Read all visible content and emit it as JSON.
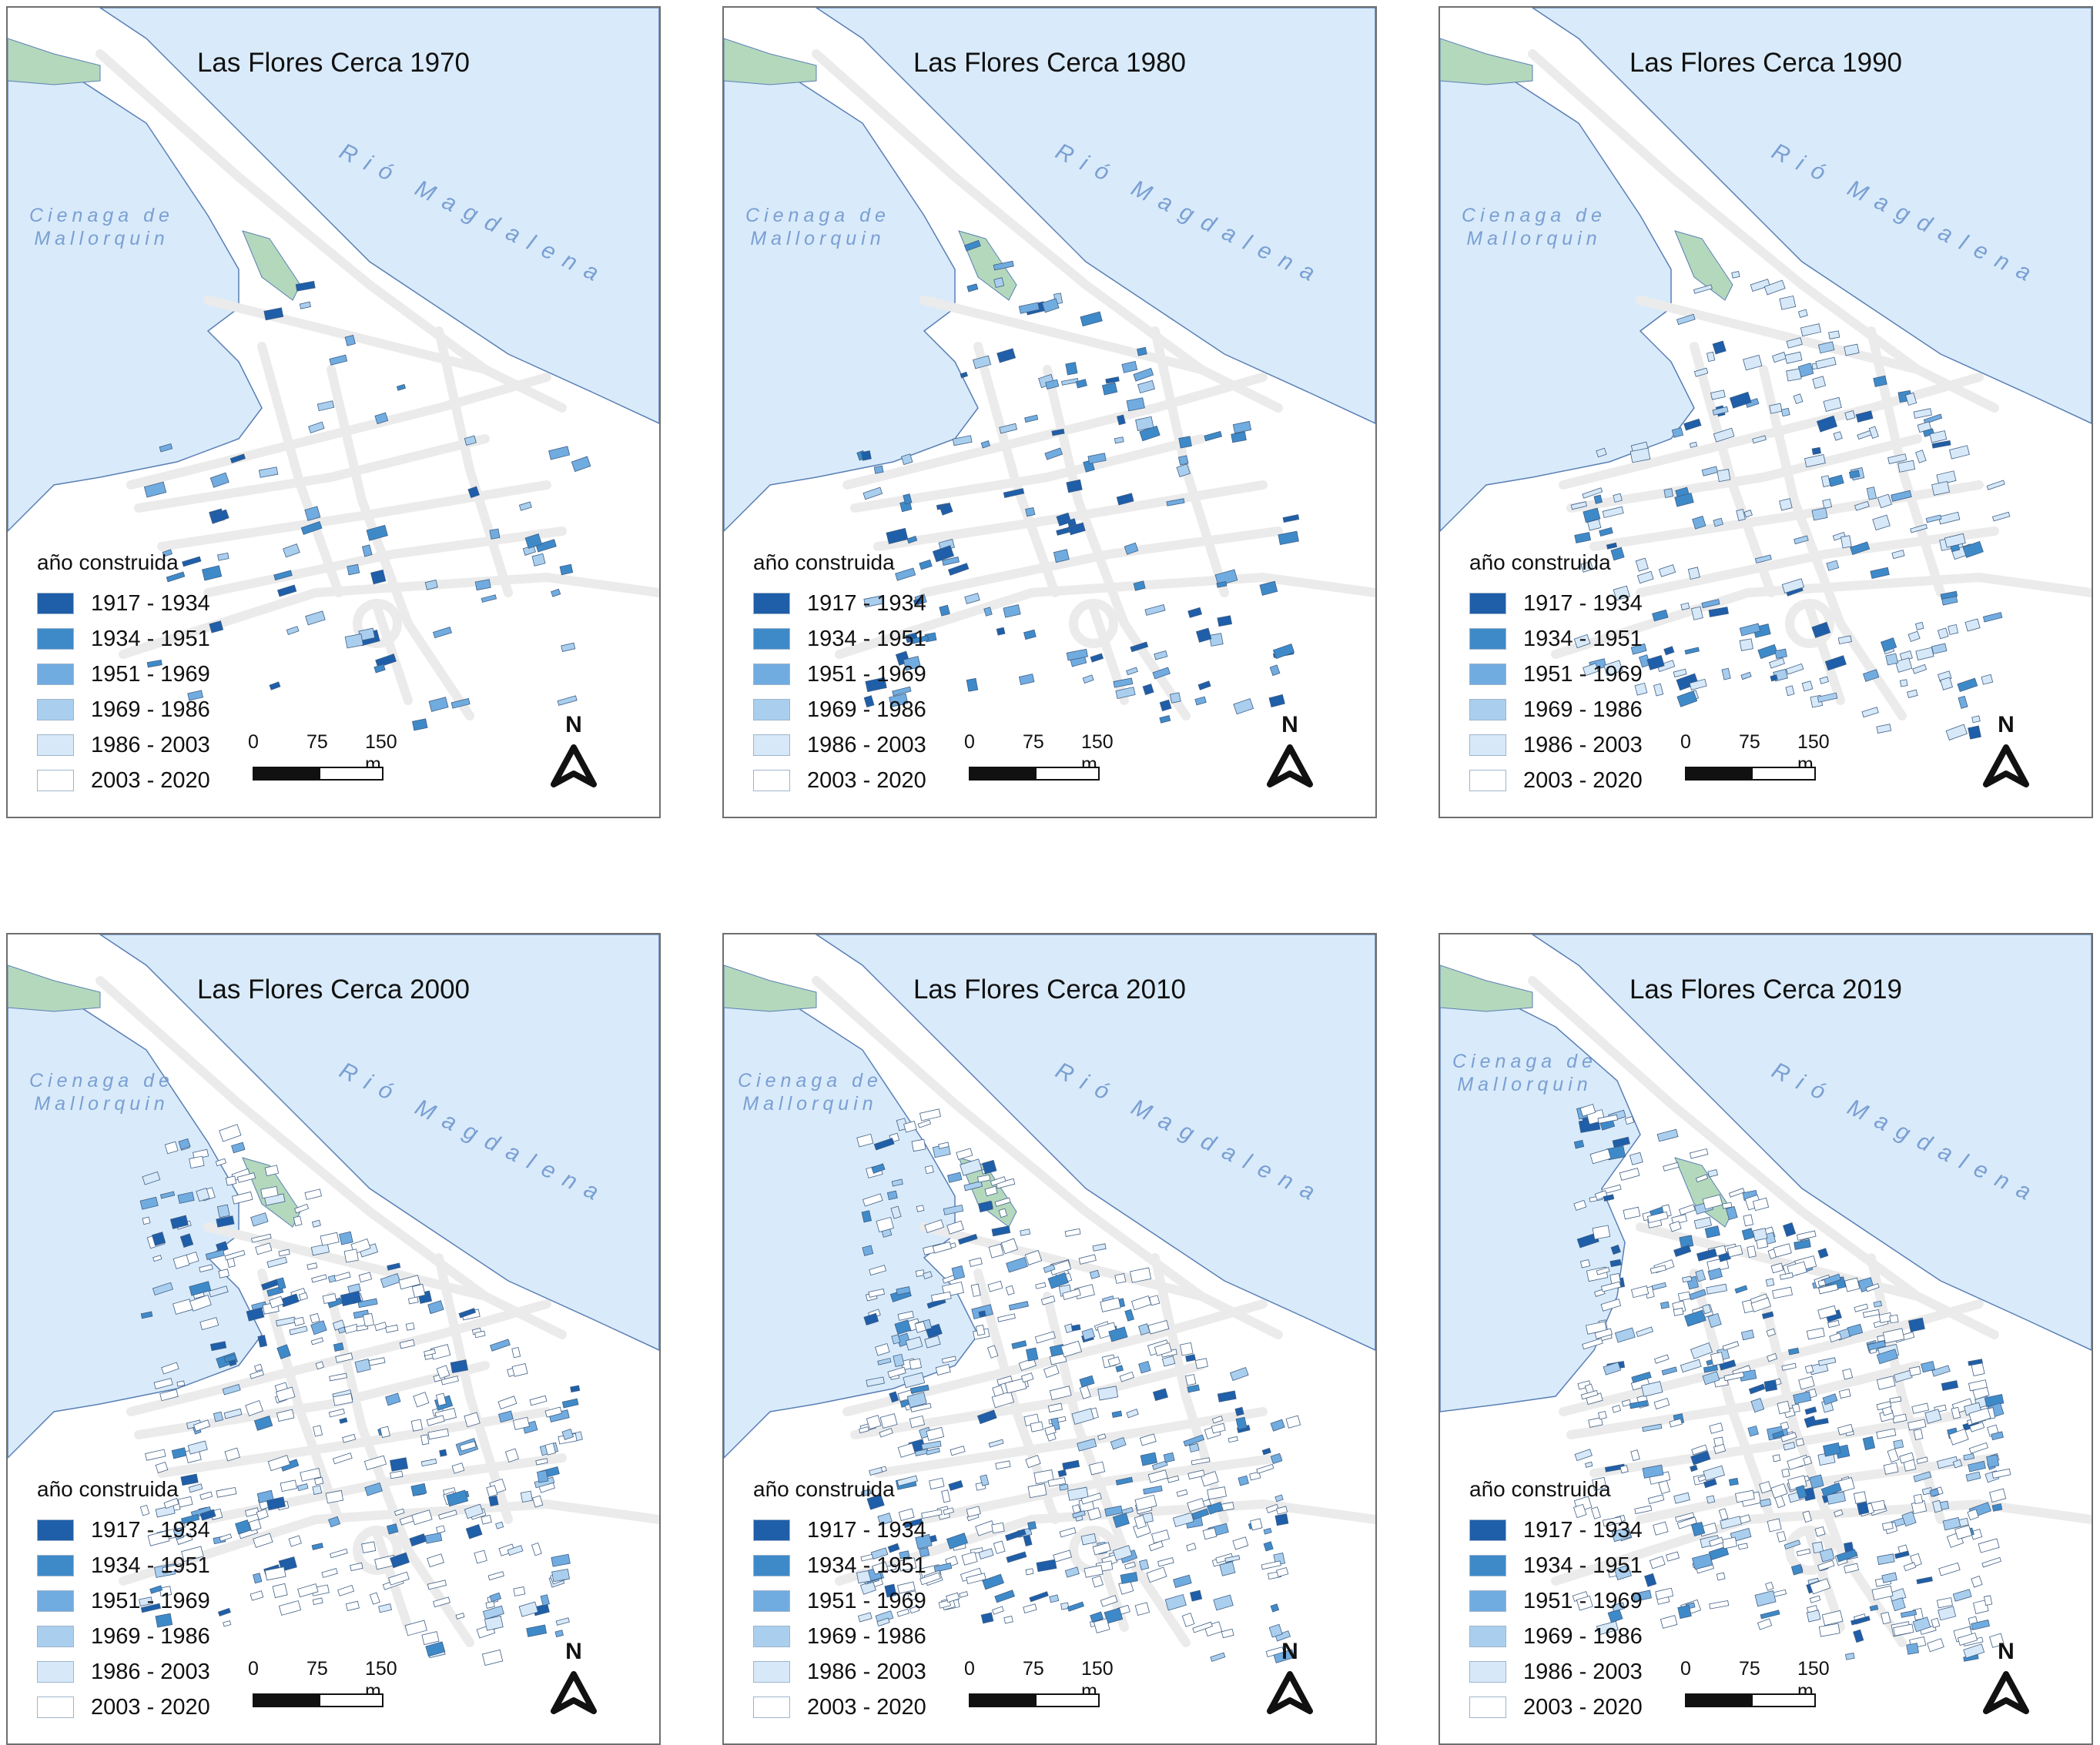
{
  "colors": {
    "water": "#d9ebfa",
    "water_outline": "#5a7fb5",
    "wetland": "#b4d8bc",
    "road": "#ebebeb",
    "building_outline": "#3f5f86",
    "label": "#7a9fd3"
  },
  "labels": {
    "cienaga": "Cienaga de Mallorquin",
    "river": "Rió Magdalena"
  },
  "legend": {
    "title": "año construida",
    "classes": [
      {
        "label": "1917 - 1934",
        "color": "#1f5ea8"
      },
      {
        "label": "1934 - 1951",
        "color": "#3e8ac9"
      },
      {
        "label": "1951 - 1969",
        "color": "#71ace0"
      },
      {
        "label": "1969 - 1986",
        "color": "#aacfee"
      },
      {
        "label": "1986 - 2003",
        "color": "#d7e9f8"
      },
      {
        "label": "2003 - 2020",
        "color": "#ffffff"
      }
    ]
  },
  "scalebar": {
    "ticks": [
      "0",
      "75",
      "150 m"
    ]
  },
  "north_label": "N",
  "panels": [
    {
      "id": "1970",
      "title": "Las Flores Cerca 1970",
      "density": 0.16,
      "classes_max": 4
    },
    {
      "id": "1980",
      "title": "Las Flores Cerca 1980",
      "density": 0.3,
      "classes_max": 4
    },
    {
      "id": "1990",
      "title": "Las Flores Cerca 1990",
      "density": 0.48,
      "classes_max": 5
    },
    {
      "id": "2000",
      "title": "Las Flores Cerca 2000",
      "density": 0.7,
      "classes_max": 6
    },
    {
      "id": "2010",
      "title": "Las Flores Cerca 2010",
      "density": 0.82,
      "classes_max": 6
    },
    {
      "id": "2019",
      "title": "Las Flores Cerca 2019",
      "density": 0.95,
      "classes_max": 6
    }
  ]
}
